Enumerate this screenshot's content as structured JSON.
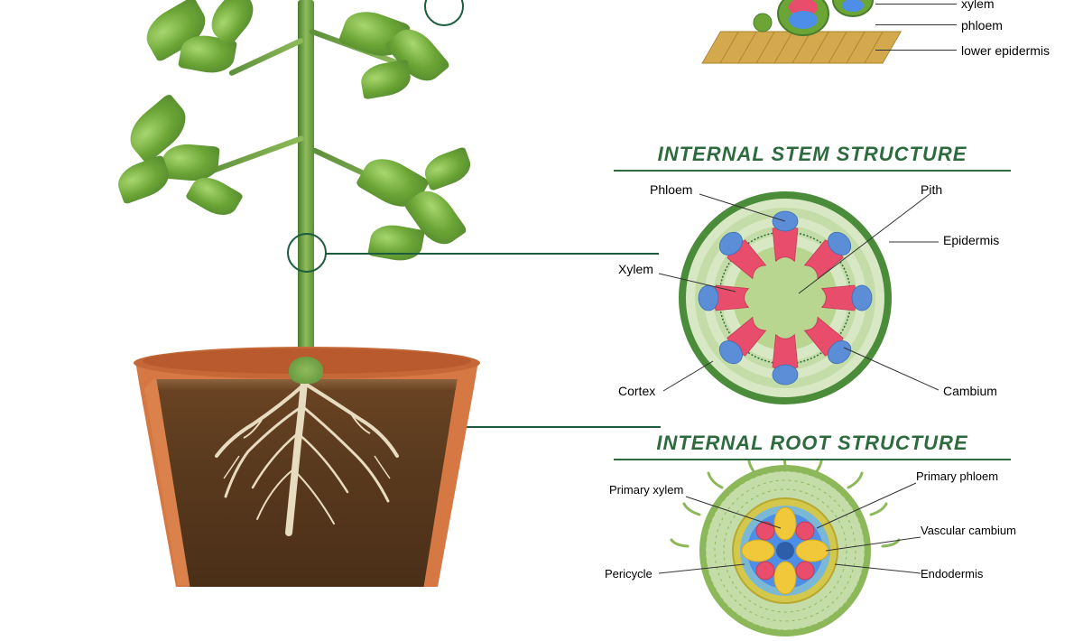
{
  "leaf_section": {
    "labels": [
      "xylem",
      "phloem",
      "lower epidermis"
    ],
    "tile_color": "#d4a84c",
    "bundle_colors": {
      "xylem": "#e84d6b",
      "phloem": "#4d8ee8",
      "sheath": "#6ba535"
    }
  },
  "stem_section": {
    "title": "INTERNAL STEM STRUCTURE",
    "title_color": "#2d6b3e",
    "underline_color": "#2d6b3e",
    "labels": {
      "phloem": "Phloem",
      "pith": "Pith",
      "epidermis": "Epidermis",
      "xylem": "Xylem",
      "cortex": "Cortex",
      "cambium": "Cambium"
    },
    "colors": {
      "epidermis": "#4a8c3a",
      "cortex_rings": "#d8e8c4",
      "cortex_alt": "#c4dda8",
      "pith": "#b8d690",
      "xylem": "#e84d6b",
      "phloem": "#5b8ed6",
      "cambium_line": "#2d6b3e"
    },
    "bundle_count": 8
  },
  "root_section": {
    "title": "INTERNAL ROOT STRUCTURE",
    "title_color": "#2d6b3e",
    "underline_color": "#2d6b3e",
    "labels": {
      "primary_xylem": "Primary xylem",
      "primary_phloem": "Primary phloem",
      "vascular_cambium": "Vascular cambium",
      "pericycle": "Pericycle",
      "endodermis": "Endodermis"
    },
    "colors": {
      "epidermis": "#8db85a",
      "cortex": "#c4dda8",
      "endodermis": "#d4c84c",
      "pericycle": "#7ab8d6",
      "xylem": "#f0c83a",
      "phloem": "#e84d6b",
      "center": "#4d8ee8",
      "hair": "#8db85a"
    }
  },
  "plant": {
    "leaf_color_light": "#a8d670",
    "leaf_color_dark": "#4a7c2e",
    "stem_color": "#6ba535",
    "pot_color": "#d67843",
    "pot_rim": "#c46838",
    "pot_inner": "#b85a2e",
    "soil_color": "#5a3a1e",
    "root_color": "#e8dcc0",
    "marker_color": "#1a5c3d"
  },
  "label_fontsize": 14,
  "title_fontsize": 22
}
